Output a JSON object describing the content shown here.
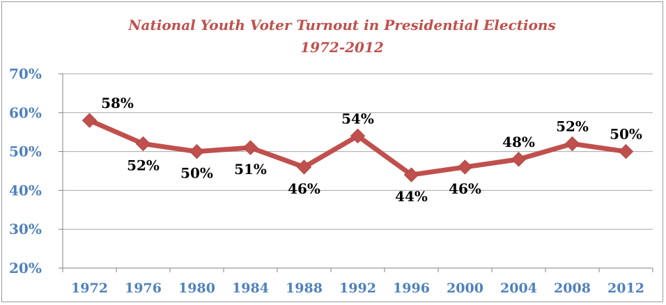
{
  "chart_data": {
    "type": "line",
    "title": "National Youth Voter Turnout in Presidential Elections",
    "subtitle": "1972-2012",
    "categories": [
      "1972",
      "1976",
      "1980",
      "1984",
      "1988",
      "1992",
      "1996",
      "2000",
      "2004",
      "2008",
      "2012"
    ],
    "series": [
      {
        "values": [
          58,
          52,
          50,
          51,
          46,
          54,
          44,
          46,
          48,
          52,
          50
        ],
        "labels": [
          "58%",
          "52%",
          "50%",
          "51%",
          "46%",
          "54%",
          "44%",
          "46%",
          "48%",
          "52%",
          "50%"
        ],
        "label_side": [
          "above",
          "below",
          "below",
          "below",
          "below",
          "above",
          "below",
          "below",
          "above",
          "above",
          "above"
        ],
        "color": "#c0504d"
      }
    ],
    "yticks": [
      "20%",
      "30%",
      "40%",
      "50%",
      "60%",
      "70%"
    ],
    "ytick_values": [
      20,
      30,
      40,
      50,
      60,
      70
    ],
    "ylim": [
      20,
      70
    ],
    "xlabel": "",
    "ylabel": "",
    "grid": {
      "horizontal": true,
      "vertical": false
    },
    "legend": "none",
    "colors": {
      "title": "#c0504d",
      "axis_text": "#4f81bd",
      "line": "#c0504d",
      "gridline": "#a6a6a6",
      "data_label": "#000000"
    }
  }
}
